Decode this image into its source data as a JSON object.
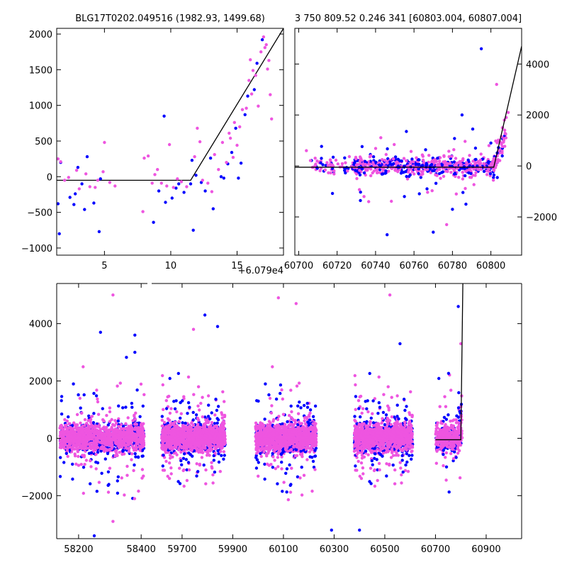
{
  "figure": {
    "left_title": "BLG17T0202.049516 (1982.93, 1499.68)",
    "right_title": "3 750 809.52 0.246 341 [60803.004, 60807.004]",
    "offset_label": "+6.079e4"
  },
  "colors": {
    "series_a": "#0000ff",
    "series_b": "#ee55e0",
    "model": "#000000"
  },
  "chart_data": [
    {
      "type": "scatter",
      "panel": "top-left",
      "title": "BLG17T0202.049516 (1982.93, 1499.68)",
      "xlim": [
        1.4,
        18.5
      ],
      "ylim": [
        -1100,
        2080
      ],
      "xticks": [
        "5",
        "10",
        "15"
      ],
      "xtick_values": [
        5,
        10,
        15
      ],
      "yticks": [
        "−1000",
        "−500",
        "0",
        "500",
        "1000",
        "1500",
        "2000"
      ],
      "ytick_values": [
        -1000,
        -500,
        0,
        500,
        1000,
        1500,
        2000
      ],
      "x_offset_label": "+6.079e4",
      "model_line": {
        "x": [
          1.4,
          11.5,
          18.5
        ],
        "y": [
          -50,
          -50,
          2080
        ]
      },
      "series": [
        {
          "color": "blue",
          "points": [
            [
              1.5,
              -380
            ],
            [
              1.6,
              -800
            ],
            [
              1.7,
              200
            ],
            [
              2.4,
              -290
            ],
            [
              2.7,
              -390
            ],
            [
              2.8,
              -240
            ],
            [
              3.0,
              130
            ],
            [
              3.3,
              -100
            ],
            [
              3.5,
              -460
            ],
            [
              3.7,
              280
            ],
            [
              4.2,
              -370
            ],
            [
              4.6,
              -770
            ],
            [
              4.7,
              -30
            ],
            [
              8.7,
              -640
            ],
            [
              9.1,
              -200
            ],
            [
              9.5,
              850
            ],
            [
              9.6,
              -360
            ],
            [
              10.1,
              -300
            ],
            [
              10.4,
              -160
            ],
            [
              10.6,
              -100
            ],
            [
              11.0,
              -220
            ],
            [
              11.5,
              -100
            ],
            [
              11.6,
              230
            ],
            [
              11.7,
              -750
            ],
            [
              11.9,
              20
            ],
            [
              12.3,
              -80
            ],
            [
              12.6,
              -200
            ],
            [
              13.0,
              260
            ],
            [
              13.2,
              -450
            ],
            [
              13.8,
              0
            ],
            [
              14.0,
              -20
            ],
            [
              14.3,
              180
            ],
            [
              14.6,
              340
            ],
            [
              14.9,
              680
            ],
            [
              15.1,
              -20
            ],
            [
              15.3,
              190
            ],
            [
              15.6,
              870
            ],
            [
              15.8,
              1130
            ],
            [
              16.3,
              1220
            ],
            [
              16.5,
              1590
            ],
            [
              16.9,
              1920
            ]
          ]
        },
        {
          "color": "magenta",
          "points": [
            [
              1.5,
              250
            ],
            [
              1.7,
              210
            ],
            [
              2.0,
              -50
            ],
            [
              2.3,
              -10
            ],
            [
              2.9,
              90
            ],
            [
              3.1,
              -170
            ],
            [
              3.6,
              40
            ],
            [
              3.9,
              -140
            ],
            [
              4.3,
              -150
            ],
            [
              4.5,
              -50
            ],
            [
              4.9,
              70
            ],
            [
              5.0,
              480
            ],
            [
              5.4,
              -80
            ],
            [
              5.8,
              -130
            ],
            [
              7.9,
              -490
            ],
            [
              8.0,
              260
            ],
            [
              8.3,
              290
            ],
            [
              8.6,
              -90
            ],
            [
              8.8,
              30
            ],
            [
              9.0,
              100
            ],
            [
              9.3,
              -90
            ],
            [
              9.7,
              -130
            ],
            [
              9.9,
              450
            ],
            [
              10.2,
              -150
            ],
            [
              10.5,
              -30
            ],
            [
              10.8,
              -70
            ],
            [
              11.2,
              -140
            ],
            [
              11.8,
              280
            ],
            [
              12.0,
              680
            ],
            [
              12.2,
              490
            ],
            [
              12.4,
              -50
            ],
            [
              12.8,
              -90
            ],
            [
              13.1,
              -210
            ],
            [
              13.3,
              310
            ],
            [
              13.6,
              100
            ],
            [
              13.9,
              480
            ],
            [
              14.2,
              200
            ],
            [
              14.4,
              610
            ],
            [
              14.5,
              540
            ],
            [
              14.7,
              270
            ],
            [
              14.8,
              760
            ],
            [
              15.0,
              440
            ],
            [
              15.2,
              700
            ],
            [
              15.4,
              940
            ],
            [
              15.7,
              960
            ],
            [
              15.9,
              1350
            ],
            [
              16.0,
              1640
            ],
            [
              16.1,
              1160
            ],
            [
              16.2,
              1490
            ],
            [
              16.4,
              1420
            ],
            [
              16.6,
              990
            ],
            [
              16.8,
              1750
            ],
            [
              17.0,
              1960
            ],
            [
              17.1,
              1810
            ],
            [
              17.2,
              1850
            ],
            [
              17.3,
              1510
            ],
            [
              17.4,
              1630
            ],
            [
              17.5,
              1150
            ],
            [
              17.6,
              810
            ]
          ]
        }
      ]
    },
    {
      "type": "scatter",
      "panel": "top-right",
      "title": "3 750 809.52 0.246 341 [60803.004, 60807.004]",
      "xlim": [
        60698,
        60816
      ],
      "ylim": [
        -3500,
        5400
      ],
      "xticks": [
        "60700",
        "60720",
        "60740",
        "60760",
        "60780",
        "60800"
      ],
      "xtick_values": [
        60700,
        60720,
        60740,
        60760,
        60780,
        60800
      ],
      "yticks": [
        "−2000",
        "0",
        "2000",
        "4000"
      ],
      "ytick_values": [
        -2000,
        0,
        2000,
        4000
      ],
      "y_axis_side": "right",
      "model_line": {
        "x": [
          60698,
          60801.5,
          60816
        ],
        "y": [
          -50,
          -50,
          4700
        ]
      },
      "series": [
        {
          "color": "blue",
          "points": [
            [
              60746,
              -2700
            ],
            [
              60770,
              -2600
            ],
            [
              60787,
              -1500
            ],
            [
              60795,
              4600
            ],
            [
              60785,
              2000
            ],
            [
              60792,
              700
            ],
            [
              60800,
              900
            ],
            [
              60755,
              -1200
            ],
            [
              60780,
              -1700
            ]
          ]
        },
        {
          "color": "magenta",
          "points": [
            [
              60704,
              600
            ],
            [
              60777,
              -2300
            ],
            [
              60782,
              -1100
            ],
            [
              60799,
              800
            ],
            [
              60803,
              3200
            ],
            [
              60806,
              1500
            ],
            [
              60807,
              1800
            ],
            [
              60808,
              1900
            ],
            [
              60809,
              2100
            ],
            [
              60734,
              -1200
            ]
          ]
        }
      ]
    },
    {
      "type": "scatter",
      "panel": "bottom",
      "xlim": [
        58130,
        61040
      ],
      "ylim": [
        -3500,
        5400
      ],
      "xticks": [
        "58200",
        "58400",
        "59700",
        "59900",
        "60100",
        "60300",
        "60500",
        "60700",
        "60900"
      ],
      "xtick_values": [
        58200,
        58400,
        59700,
        59900,
        60100,
        60300,
        60500,
        60700,
        60900
      ],
      "yticks": [
        "−2000",
        "0",
        "2000",
        "4000"
      ],
      "ytick_values": [
        -2000,
        0,
        2000,
        4000
      ],
      "broken_x_axis": true,
      "seasons": [
        {
          "label": "58200",
          "spread": 1
        },
        {
          "label": "59700",
          "spread": 1
        },
        {
          "label": "60100",
          "spread": 1
        },
        {
          "label": "60500",
          "spread": 1
        },
        {
          "label": "60750",
          "spread": 1
        }
      ],
      "model_line": {
        "x": [
          60700,
          60800,
          60808
        ],
        "y": [
          -50,
          -50,
          5400
        ]
      },
      "series": [
        {
          "color": "blue",
          "outliers": [
            [
              58270,
              3700
            ],
            [
              58380,
              3600
            ],
            [
              58380,
              3000
            ],
            [
              59790,
              4300
            ],
            [
              59840,
              3900
            ],
            [
              60560,
              3300
            ],
            [
              60790,
              4600
            ],
            [
              58250,
              -3400
            ],
            [
              60290,
              -3200
            ],
            [
              60400,
              -3200
            ]
          ]
        },
        {
          "color": "magenta",
          "outliers": [
            [
              58310,
              5000
            ],
            [
              59745,
              3800
            ],
            [
              60080,
              4900
            ],
            [
              60150,
              4700
            ],
            [
              60520,
              5000
            ],
            [
              60800,
              3300
            ],
            [
              58310,
              -2900
            ]
          ]
        }
      ]
    }
  ]
}
